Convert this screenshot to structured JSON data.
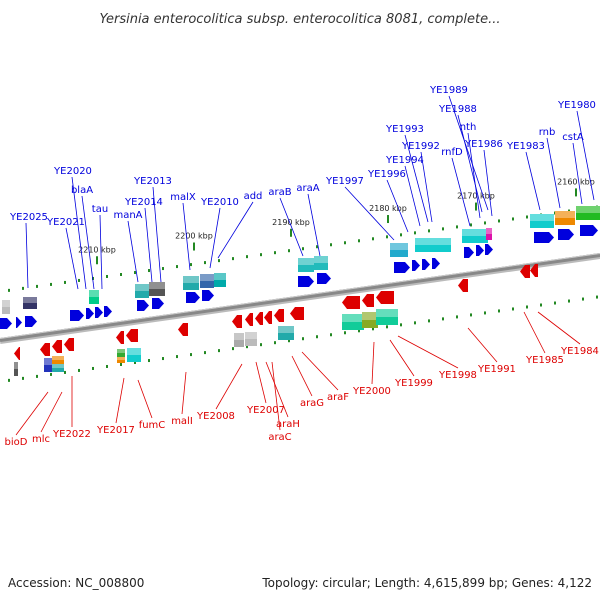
{
  "title": "Yersinia enterocolitica subsp. enterocolitica 8081, complete...",
  "footer": {
    "accession": "Accession: NC_008800",
    "summary": "Topology: circular; Length: 4,615,899 bp; Genes: 4,122"
  },
  "ticks": [
    "2210 kbp",
    "2200 kbp",
    "2190 kbp",
    "2180 kbp",
    "2170 kbp",
    "2160 kbp"
  ],
  "colors": {
    "forward": "#0000dd",
    "reverse": "#dd0000",
    "backbone": "#888888",
    "tick": "#228822"
  },
  "genes": {
    "forward": [
      "YE2025",
      "YE2021",
      "YE2020",
      "blaA",
      "tau",
      "manA",
      "YE2014",
      "YE2013",
      "malX",
      "YE2010",
      "add",
      "araB",
      "araA",
      "YE1997",
      "YE1996",
      "YE1994",
      "YE1993",
      "YE1992",
      "YE1989",
      "YE1988",
      "rnfD",
      "nth",
      "YE1986",
      "YE1983",
      "rnb",
      "cstA",
      "YE1980"
    ],
    "reverse": [
      "bioD",
      "mlc",
      "YE2022",
      "YE2017",
      "fumC",
      "malI",
      "YE2008",
      "YE2007",
      "araH",
      "araC",
      "araG",
      "araF",
      "YE2000",
      "YE1999",
      "YE1998",
      "YE1991",
      "YE1985",
      "YE1984"
    ]
  }
}
